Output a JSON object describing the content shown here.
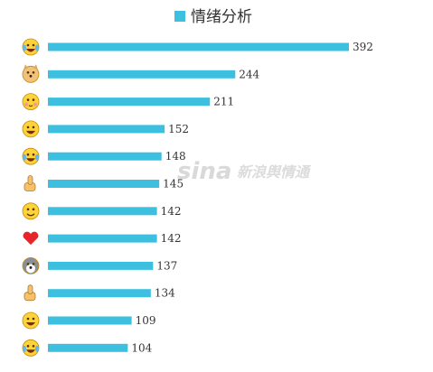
{
  "chart_data": {
    "type": "bar",
    "orientation": "horizontal",
    "title": "",
    "legend": [
      "情绪分析"
    ],
    "legend_position": "top-center",
    "categories": [
      "grin-sweat-emoji",
      "doge-emoji",
      "shy-emoji",
      "laugh-emoji",
      "tears-of-joy-emoji",
      "thumbs-up-emoji",
      "smile-emoji",
      "red-heart-emoji",
      "husky-emoji",
      "like-hand-emoji",
      "grinning-emoji",
      "crying-emoji"
    ],
    "series": [
      {
        "name": "情绪分析",
        "color": "#3dbfdf",
        "values": [
          392,
          244,
          211,
          152,
          148,
          145,
          142,
          142,
          137,
          134,
          109,
          104
        ]
      }
    ],
    "xlim": [
      0,
      400
    ],
    "grid": false
  },
  "watermark": {
    "brand": "sina",
    "text": "新浪舆情通"
  }
}
